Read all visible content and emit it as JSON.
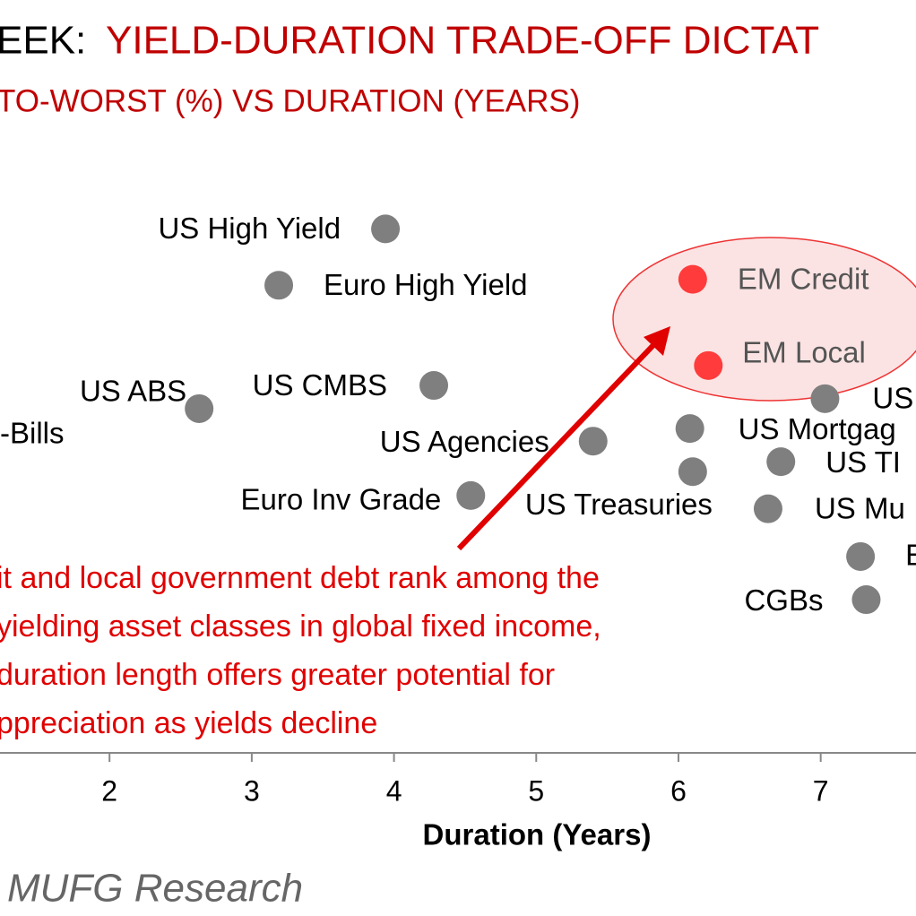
{
  "chart_data": {
    "type": "scatter",
    "title_lead": "EEK:",
    "title": "YIELD-DURATION TRADE-OFF DICTAT",
    "subtitle": "TO-WORST (%) VS DURATION (YEARS)",
    "x_label": "Duration (Years)",
    "source": "MUFG Research",
    "annotation": [
      "it and local government debt rank among the",
      "yielding asset classes in global fixed income,",
      "duration length offers greater potential for",
      "ppreciation as yields decline"
    ],
    "offscreen_label": "-Bills",
    "labels": [
      "US High Yield",
      "Euro High Yield",
      "EM Credit",
      "EM Local",
      "US ABS",
      "US CMBS",
      "US",
      "US Agencies",
      "US Mortgag",
      "US TI",
      "US Treasuries",
      "US Mu",
      "Euro Inv Grade",
      "E",
      "CGBs"
    ],
    "x": [
      3.94,
      3.19,
      6.1,
      6.21,
      2.63,
      4.28,
      7.03,
      5.4,
      6.08,
      6.72,
      6.1,
      6.63,
      4.54,
      7.28,
      7.32
    ],
    "values": [
      7.9,
      7.05,
      7.14,
      5.84,
      5.19,
      5.54,
      5.34,
      4.7,
      4.89,
      4.39,
      4.24,
      3.68,
      3.88,
      2.96,
      2.31
    ],
    "colors": [
      "#7f7f7f",
      "#7f7f7f",
      "#ff3b3b",
      "#ff3b3b",
      "#7f7f7f",
      "#7f7f7f",
      "#7f7f7f",
      "#7f7f7f",
      "#7f7f7f",
      "#7f7f7f",
      "#7f7f7f",
      "#7f7f7f",
      "#7f7f7f",
      "#7f7f7f",
      "#7f7f7f"
    ],
    "xlim": [
      1.23,
      7.67
    ],
    "ylim": [
      0,
      9
    ],
    "xticks": [
      2,
      3,
      4,
      5,
      6,
      7
    ]
  }
}
